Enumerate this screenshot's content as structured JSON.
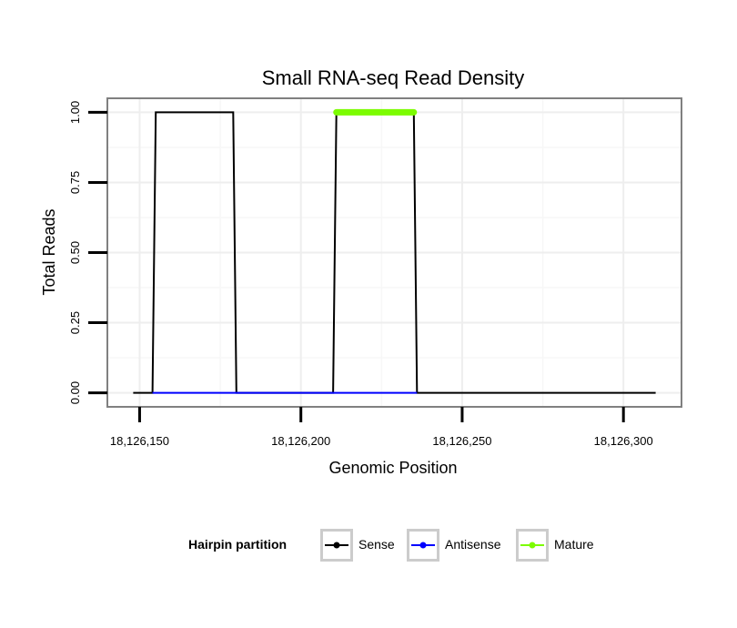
{
  "chart_data": {
    "type": "line",
    "title": "Small RNA-seq Read Density",
    "xlabel": "Genomic Position",
    "ylabel": "Total Reads",
    "xlim": [
      18126140,
      18126318
    ],
    "ylim": [
      -0.05,
      1.05
    ],
    "x_ticks": [
      18126150,
      18126200,
      18126250,
      18126300
    ],
    "x_tick_labels": [
      "18,126,150",
      "18,126,200",
      "18,126,250",
      "18,126,300"
    ],
    "y_ticks": [
      0,
      0.25,
      0.5,
      0.75,
      1.0
    ],
    "y_tick_labels": [
      "0.00",
      "0.25",
      "0.50",
      "0.75",
      "1.00"
    ],
    "grid": true,
    "legend": {
      "title": "Hairpin partition",
      "position": "bottom",
      "entries": [
        "Sense",
        "Antisense",
        "Mature"
      ]
    },
    "series": [
      {
        "name": "Sense",
        "color": "#000000",
        "x": [
          18126148,
          18126154,
          18126155,
          18126179,
          18126180,
          18126210,
          18126211,
          18126235,
          18126236,
          18126310
        ],
        "y": [
          0,
          0,
          1,
          1,
          0,
          0,
          1,
          1,
          0,
          0
        ]
      },
      {
        "name": "Antisense",
        "color": "#0000ff",
        "x": [
          18126154,
          18126180,
          18126210,
          18126236
        ],
        "y": [
          0,
          0,
          0,
          0
        ]
      },
      {
        "name": "Mature",
        "color": "#7cfc00",
        "x": [
          18126211,
          18126235
        ],
        "y": [
          1,
          1
        ]
      }
    ]
  }
}
